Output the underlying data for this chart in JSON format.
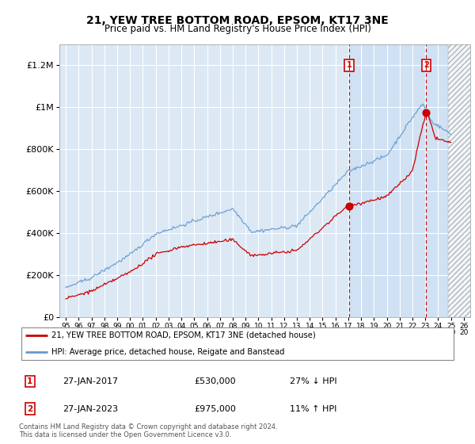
{
  "title": "21, YEW TREE BOTTOM ROAD, EPSOM, KT17 3NE",
  "subtitle": "Price paid vs. HM Land Registry's House Price Index (HPI)",
  "ylim": [
    0,
    1300000
  ],
  "yticks": [
    0,
    200000,
    400000,
    600000,
    800000,
    1000000,
    1200000
  ],
  "ytick_labels": [
    "£0",
    "£200K",
    "£400K",
    "£600K",
    "£800K",
    "£1M",
    "£1.2M"
  ],
  "chart_bg": "#dce9f5",
  "shade_start": 2017.07,
  "hatch_start": 2024.75,
  "transaction1": {
    "date_label": "27-JAN-2017",
    "year": 2017.07,
    "price": 530000,
    "pct": "27% ↓ HPI"
  },
  "transaction2": {
    "date_label": "27-JAN-2023",
    "year": 2023.07,
    "price": 975000,
    "pct": "11% ↑ HPI"
  },
  "legend_line1": "21, YEW TREE BOTTOM ROAD, EPSOM, KT17 3NE (detached house)",
  "legend_line2": "HPI: Average price, detached house, Reigate and Banstead",
  "footer": "Contains HM Land Registry data © Crown copyright and database right 2024.\nThis data is licensed under the Open Government Licence v3.0.",
  "red_color": "#cc0000",
  "blue_color": "#6699cc",
  "x_min": 1994.5,
  "x_max": 2026.5
}
